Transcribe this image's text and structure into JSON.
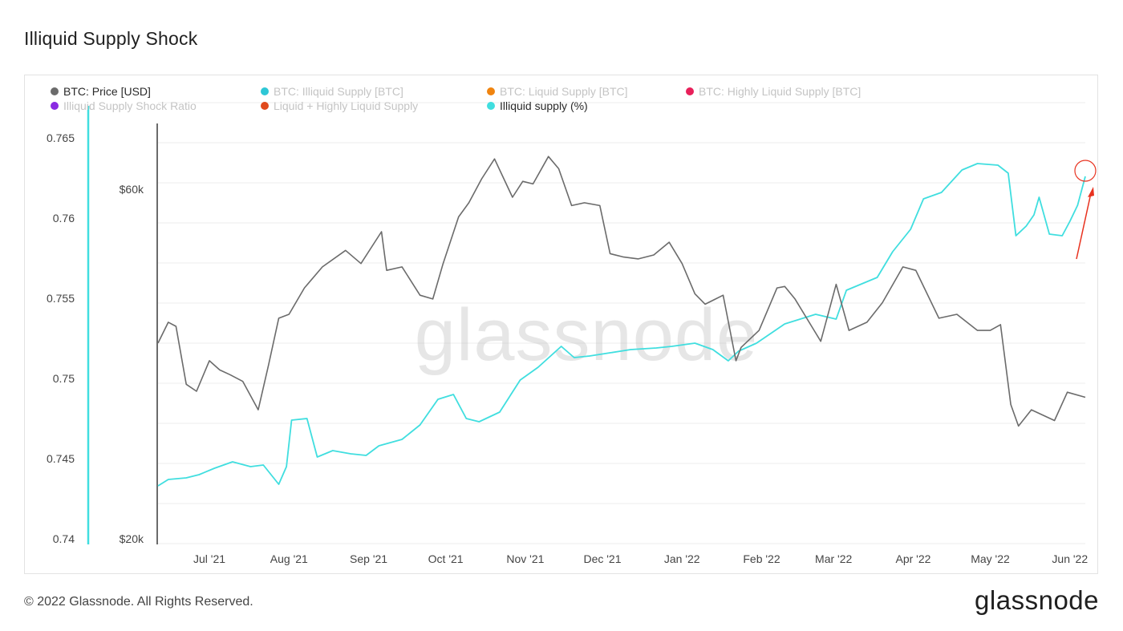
{
  "page": {
    "title": "Illiquid Supply Shock",
    "copyright": "© 2022 Glassnode. All Rights Reserved.",
    "logo_text": "glassnode",
    "watermark_text": "glassnode"
  },
  "colors": {
    "price": "#6b6b6b",
    "illiquid_supply": "#2ec7d6",
    "liquid_supply": "#f0840f",
    "highly_liquid_supply": "#e8205a",
    "shock_ratio": "#8a2be2",
    "liquid_plus_highly": "#e0491c",
    "illiquid_pct": "#40dedf",
    "annotation": "#e8321f"
  },
  "chart_data": {
    "type": "line",
    "title": "Illiquid Supply Shock",
    "x_ticks": [
      "Jul '21",
      "Aug '21",
      "Sep '21",
      "Oct '21",
      "Nov '21",
      "Dec '21",
      "Jan '22",
      "Feb '22",
      "Mar '22",
      "Apr '22",
      "May '22",
      "Jun '22"
    ],
    "x_range": [
      "2021-06-11",
      "2022-06-07"
    ],
    "left_axis": {
      "ticks": [
        "0.74",
        "0.745",
        "0.75",
        "0.755",
        "0.76",
        "0.765"
      ],
      "range": [
        0.74,
        0.7655
      ]
    },
    "price_axis": {
      "ticks": [
        "$20k",
        "$60k"
      ],
      "scale": "log",
      "range": [
        20000,
        75000
      ]
    },
    "grid": true,
    "legend": [
      {
        "label": "BTC: Price [USD]",
        "color": "#6b6b6b",
        "active": true
      },
      {
        "label": "BTC: Illiquid Supply [BTC]",
        "color": "#2ec7d6",
        "active": false
      },
      {
        "label": "BTC: Liquid Supply [BTC]",
        "color": "#f0840f",
        "active": false
      },
      {
        "label": "BTC: Highly Liquid Supply [BTC]",
        "color": "#e8205a",
        "active": false
      },
      {
        "label": "Illiquid Supply Shock Ratio",
        "color": "#8a2be2",
        "active": false
      },
      {
        "label": "Liquid + Highly Liquid Supply",
        "color": "#e0491c",
        "active": false
      },
      {
        "label": "Illiquid supply (%)",
        "color": "#40dedf",
        "active": true
      }
    ],
    "series": [
      {
        "name": "BTC: Price [USD]",
        "axis": "price",
        "x": [
          "2021-06-11",
          "2021-06-15",
          "2021-06-18",
          "2021-06-22",
          "2021-06-26",
          "2021-07-01",
          "2021-07-05",
          "2021-07-09",
          "2021-07-14",
          "2021-07-20",
          "2021-07-24",
          "2021-07-28",
          "2021-08-01",
          "2021-08-07",
          "2021-08-14",
          "2021-08-23",
          "2021-08-29",
          "2021-09-06",
          "2021-09-08",
          "2021-09-14",
          "2021-09-21",
          "2021-09-26",
          "2021-09-30",
          "2021-10-06",
          "2021-10-10",
          "2021-10-15",
          "2021-10-20",
          "2021-10-27",
          "2021-10-31",
          "2021-11-04",
          "2021-11-10",
          "2021-11-14",
          "2021-11-19",
          "2021-11-24",
          "2021-11-30",
          "2021-12-04",
          "2021-12-09",
          "2021-12-15",
          "2021-12-21",
          "2021-12-27",
          "2022-01-01",
          "2022-01-06",
          "2022-01-10",
          "2022-01-17",
          "2022-01-22",
          "2022-01-24",
          "2022-01-31",
          "2022-02-07",
          "2022-02-10",
          "2022-02-14",
          "2022-02-24",
          "2022-03-02",
          "2022-03-07",
          "2022-03-14",
          "2022-03-20",
          "2022-03-28",
          "2022-04-02",
          "2022-04-11",
          "2022-04-18",
          "2022-04-26",
          "2022-05-01",
          "2022-05-05",
          "2022-05-09",
          "2022-05-12",
          "2022-05-17",
          "2022-05-26",
          "2022-05-31",
          "2022-06-07"
        ],
        "values": [
          37000,
          39500,
          39000,
          32500,
          31800,
          35000,
          34000,
          33500,
          32800,
          30000,
          34500,
          40000,
          40500,
          44000,
          47000,
          49500,
          47500,
          52500,
          46500,
          47000,
          43000,
          42500,
          47500,
          55000,
          57500,
          62000,
          66000,
          58500,
          61500,
          61000,
          66500,
          64000,
          57000,
          57500,
          57000,
          49000,
          48500,
          48200,
          48800,
          50800,
          47500,
          43200,
          41800,
          43000,
          35000,
          36500,
          38500,
          44000,
          44200,
          42500,
          37200,
          44500,
          38500,
          39500,
          42000,
          47000,
          46500,
          40000,
          40500,
          38500,
          38500,
          39200,
          30500,
          28500,
          30000,
          29000,
          31700,
          31200
        ]
      },
      {
        "name": "Illiquid supply (%)",
        "axis": "left",
        "x": [
          "2021-06-11",
          "2021-06-15",
          "2021-06-22",
          "2021-06-27",
          "2021-07-03",
          "2021-07-10",
          "2021-07-17",
          "2021-07-22",
          "2021-07-28",
          "2021-07-31",
          "2021-08-02",
          "2021-08-08",
          "2021-08-12",
          "2021-08-18",
          "2021-08-25",
          "2021-08-31",
          "2021-09-05",
          "2021-09-14",
          "2021-09-21",
          "2021-09-28",
          "2021-10-04",
          "2021-10-09",
          "2021-10-14",
          "2021-10-22",
          "2021-10-30",
          "2021-11-06",
          "2021-11-15",
          "2021-11-20",
          "2021-11-26",
          "2021-12-04",
          "2021-12-12",
          "2021-12-22",
          "2021-12-28",
          "2022-01-06",
          "2022-01-13",
          "2022-01-19",
          "2022-01-23",
          "2022-01-30",
          "2022-02-10",
          "2022-02-22",
          "2022-03-02",
          "2022-03-06",
          "2022-03-12",
          "2022-03-18",
          "2022-03-24",
          "2022-03-31",
          "2022-04-05",
          "2022-04-12",
          "2022-04-20",
          "2022-04-26",
          "2022-05-04",
          "2022-05-08",
          "2022-05-11",
          "2022-05-15",
          "2022-05-18",
          "2022-05-20",
          "2022-05-24",
          "2022-05-29",
          "2022-06-01",
          "2022-06-04",
          "2022-06-07"
        ],
        "values": [
          0.7433,
          0.7437,
          0.7438,
          0.744,
          0.7444,
          0.7448,
          0.7445,
          0.7446,
          0.7434,
          0.7445,
          0.7474,
          0.7475,
          0.7451,
          0.7455,
          0.7453,
          0.7452,
          0.7458,
          0.7462,
          0.7471,
          0.7487,
          0.749,
          0.7475,
          0.7473,
          0.7479,
          0.7499,
          0.7507,
          0.752,
          0.7513,
          0.7514,
          0.7516,
          0.7518,
          0.7519,
          0.752,
          0.7522,
          0.7518,
          0.7511,
          0.7517,
          0.7522,
          0.7534,
          0.754,
          0.7537,
          0.7555,
          0.7559,
          0.7563,
          0.7579,
          0.7593,
          0.7612,
          0.7616,
          0.763,
          0.7634,
          0.7633,
          0.7628,
          0.7589,
          0.7595,
          0.7602,
          0.7613,
          0.759,
          0.7589,
          0.7598,
          0.7608,
          0.7626
        ]
      }
    ],
    "annotation": {
      "type": "circle-arrow",
      "x": "2022-06-07",
      "value": 0.7627
    }
  }
}
